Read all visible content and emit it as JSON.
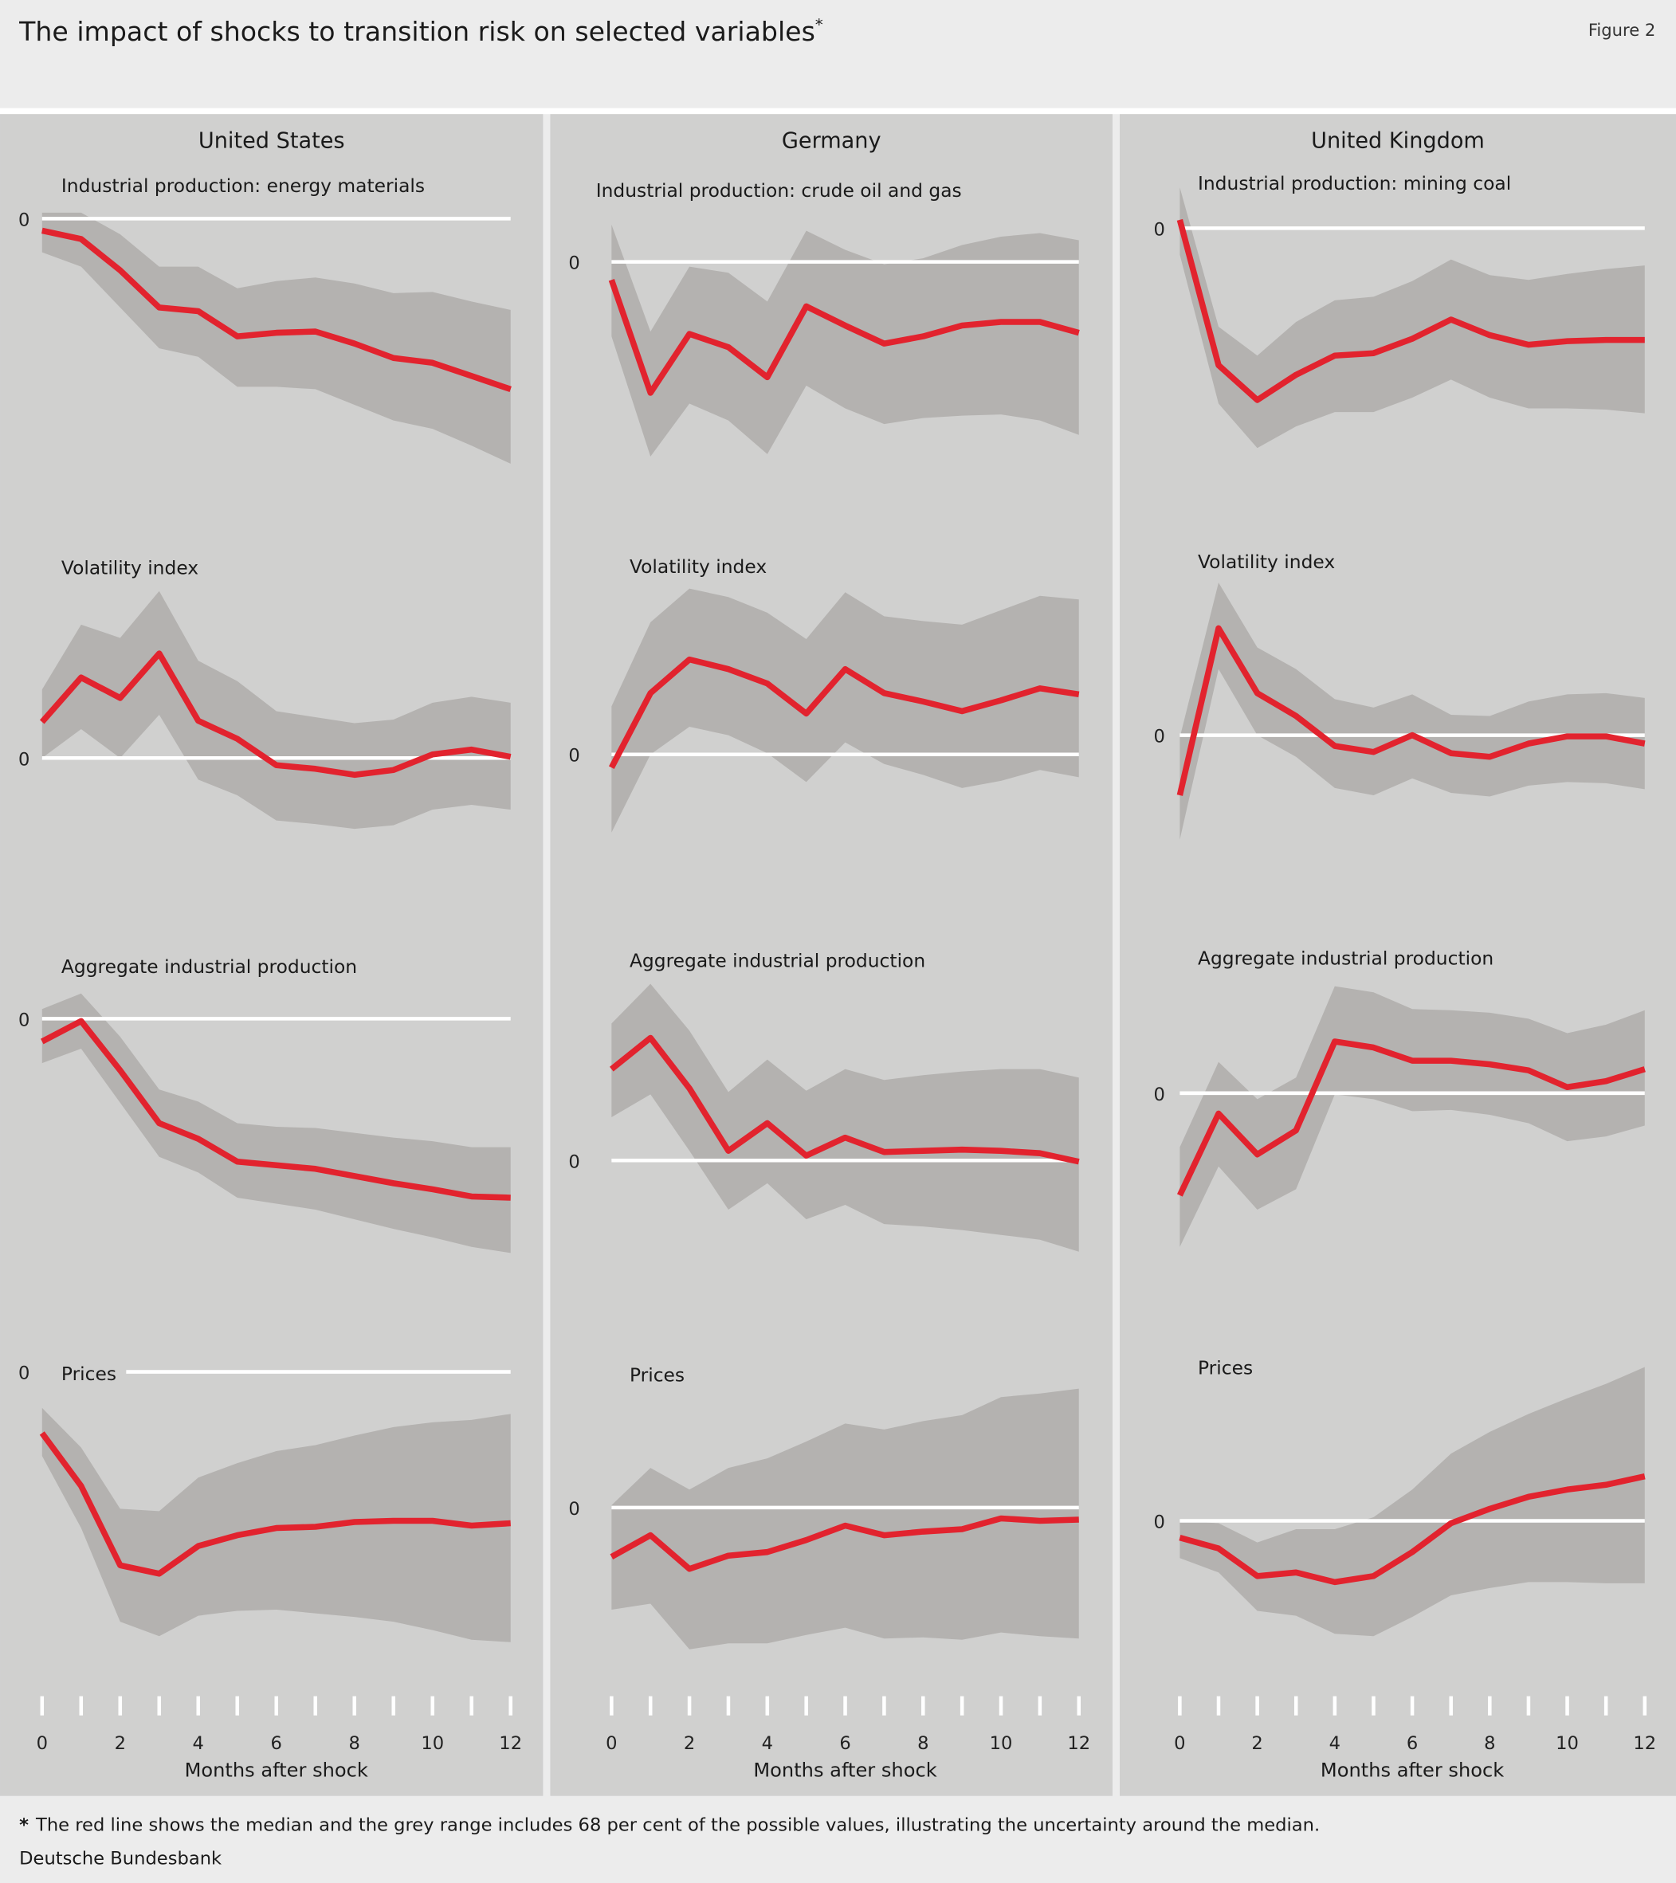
{
  "title": "The impact of shocks to transition risk on selected variables",
  "title_marker": "*",
  "figure_label": "Figure 2",
  "footnote_marker": "*",
  "footnote": "The red line shows the median and the grey range includes 68 per cent of the possible values, illustrating the uncertainty around the median.",
  "source": "Deutsche Bundesbank",
  "colors": {
    "median": "#e2232e",
    "band": "#b4b2b0",
    "panel_bg": "#d0d0cf",
    "page_bg": "#ececec",
    "zero_line": "#ffffff"
  },
  "chart_data": [
    {
      "country": "United States",
      "xlabel": "Months after shock",
      "x": [
        0,
        1,
        2,
        3,
        4,
        5,
        6,
        7,
        8,
        9,
        10,
        11,
        12
      ],
      "x_tick_labels": [
        "0",
        "2",
        "4",
        "6",
        "8",
        "10",
        "12"
      ],
      "zero_label": "0",
      "panels": [
        {
          "type": "area",
          "title": "Industrial production: energy materials",
          "median": [
            -1.0,
            -1.7,
            -4.3,
            -7.4,
            -7.7,
            -9.8,
            -9.5,
            -9.4,
            -10.4,
            -11.6,
            -12.0,
            -13.1,
            -14.2
          ],
          "upper": [
            0.5,
            0.5,
            -1.3,
            -4.0,
            -4.0,
            -5.8,
            -5.2,
            -4.9,
            -5.4,
            -6.2,
            -6.1,
            -6.9,
            -7.6
          ],
          "lower": [
            -2.8,
            -4.0,
            -7.4,
            -10.8,
            -11.5,
            -14.0,
            -14.0,
            -14.2,
            -15.5,
            -16.8,
            -17.5,
            -18.9,
            -20.4
          ]
        },
        {
          "type": "area",
          "title": "Volatility index",
          "median": [
            3.0,
            6.7,
            5.0,
            8.7,
            3.1,
            1.6,
            -0.6,
            -0.9,
            -1.4,
            -1.0,
            0.3,
            0.7,
            0.1
          ],
          "upper": [
            5.7,
            11.1,
            10.0,
            13.9,
            8.1,
            6.4,
            3.9,
            3.4,
            2.9,
            3.2,
            4.6,
            5.1,
            4.6
          ],
          "lower": [
            0,
            2.4,
            0,
            3.6,
            -1.8,
            -3.1,
            -5.2,
            -5.5,
            -5.9,
            -5.6,
            -4.3,
            -3.9,
            -4.3
          ]
        },
        {
          "type": "area",
          "title": "Aggregate industrial production",
          "median": [
            -1.9,
            -0.2,
            -4.3,
            -8.7,
            -10.0,
            -11.9,
            -12.2,
            -12.5,
            -13.1,
            -13.7,
            -14.2,
            -14.8,
            -14.9
          ],
          "upper": [
            0.8,
            2.1,
            -1.5,
            -5.9,
            -6.9,
            -8.7,
            -9.0,
            -9.1,
            -9.5,
            -9.9,
            -10.2,
            -10.7,
            -10.7
          ],
          "lower": [
            -3.7,
            -2.5,
            -7.0,
            -11.5,
            -12.8,
            -14.9,
            -15.4,
            -15.9,
            -16.7,
            -17.5,
            -18.2,
            -19.0,
            -19.5
          ]
        },
        {
          "type": "area",
          "title": "Prices",
          "median": [
            -5.1,
            -9.5,
            -16.1,
            -16.8,
            -14.5,
            -13.6,
            -13.0,
            -12.9,
            -12.5,
            -12.4,
            -12.4,
            -12.8,
            -12.6
          ],
          "upper": [
            -3.0,
            -6.3,
            -11.4,
            -11.6,
            -8.8,
            -7.6,
            -6.6,
            -6.1,
            -5.3,
            -4.6,
            -4.2,
            -4.0,
            -3.5
          ],
          "lower": [
            -7.0,
            -13.0,
            -20.8,
            -22.0,
            -20.3,
            -19.9,
            -19.8,
            -20.1,
            -20.4,
            -20.8,
            -21.5,
            -22.3,
            -22.5
          ]
        }
      ]
    },
    {
      "country": "Germany",
      "xlabel": "Months after shock",
      "x": [
        0,
        1,
        2,
        3,
        4,
        5,
        6,
        7,
        8,
        9,
        10,
        11,
        12
      ],
      "x_tick_labels": [
        "0",
        "2",
        "4",
        "6",
        "8",
        "10",
        "12"
      ],
      "zero_label": "0",
      "panels": [
        {
          "type": "area",
          "title": "Industrial production: crude oil and gas",
          "median": [
            -1.5,
            -10.9,
            -6.0,
            -7.1,
            -9.6,
            -3.7,
            -5.3,
            -6.8,
            -6.2,
            -5.3,
            -5.0,
            -5.0,
            -5.9
          ],
          "upper": [
            3.1,
            -5.8,
            -0.4,
            -0.9,
            -3.3,
            2.6,
            1.0,
            -0.2,
            0.3,
            1.4,
            2.1,
            2.4,
            1.8
          ],
          "lower": [
            -6.2,
            -16.2,
            -11.8,
            -13.2,
            -16.0,
            -10.3,
            -12.2,
            -13.5,
            -13.0,
            -12.8,
            -12.7,
            -13.2,
            -14.4
          ]
        },
        {
          "type": "area",
          "title": "Volatility index",
          "median": [
            -1.1,
            5.1,
            7.9,
            7.1,
            5.9,
            3.4,
            7.1,
            5.1,
            4.4,
            3.6,
            4.5,
            5.5,
            5.0
          ],
          "upper": [
            4.0,
            11.0,
            13.8,
            13.1,
            11.8,
            9.6,
            13.5,
            11.5,
            11.1,
            10.8,
            12.0,
            13.2,
            12.9
          ],
          "lower": [
            -6.5,
            0,
            2.3,
            1.6,
            0.1,
            -2.3,
            1.0,
            -0.8,
            -1.7,
            -2.8,
            -2.2,
            -1.3,
            -1.9
          ]
        },
        {
          "type": "area",
          "title": "Aggregate industrial production",
          "median": [
            7.6,
            10.2,
            6.0,
            0.8,
            3.1,
            0.4,
            1.9,
            0.7,
            0.8,
            0.9,
            0.8,
            0.6,
            -0.1
          ],
          "upper": [
            11.4,
            14.7,
            10.8,
            5.7,
            8.4,
            5.8,
            7.6,
            6.7,
            7.1,
            7.4,
            7.6,
            7.6,
            6.9
          ],
          "lower": [
            3.6,
            5.5,
            0.8,
            -4.1,
            -1.9,
            -4.9,
            -3.7,
            -5.3,
            -5.5,
            -5.8,
            -6.2,
            -6.6,
            -7.6
          ]
        },
        {
          "type": "area",
          "title": "Prices",
          "median": [
            -4.1,
            -2.3,
            -5.1,
            -4.0,
            -3.7,
            -2.7,
            -1.5,
            -2.3,
            -2.0,
            -1.8,
            -0.9,
            -1.1,
            -1.0
          ],
          "upper": [
            0.2,
            3.3,
            1.5,
            3.3,
            4.1,
            5.5,
            7.0,
            6.5,
            7.2,
            7.7,
            9.2,
            9.5,
            9.9
          ],
          "lower": [
            -8.5,
            -8.0,
            -11.8,
            -11.3,
            -11.3,
            -10.6,
            -10.0,
            -10.9,
            -10.8,
            -11.0,
            -10.4,
            -10.7,
            -10.9
          ]
        }
      ]
    },
    {
      "country": "United Kingdom",
      "xlabel": "Months after shock",
      "x": [
        0,
        1,
        2,
        3,
        4,
        5,
        6,
        7,
        8,
        9,
        10,
        11,
        12
      ],
      "x_tick_labels": [
        "0",
        "2",
        "4",
        "6",
        "8",
        "10",
        "12"
      ],
      "zero_label": "0",
      "panels": [
        {
          "type": "area",
          "title": "Industrial production: mining coal",
          "median": [
            0.7,
            -11.4,
            -14.3,
            -12.2,
            -10.6,
            -10.4,
            -9.2,
            -7.6,
            -8.9,
            -9.7,
            -9.4,
            -9.3,
            -9.3
          ],
          "upper": [
            3.4,
            -8.2,
            -10.6,
            -7.8,
            -6.0,
            -5.7,
            -4.4,
            -2.6,
            -3.9,
            -4.3,
            -3.8,
            -3.4,
            -3.1
          ],
          "lower": [
            -2.2,
            -14.6,
            -18.3,
            -16.5,
            -15.3,
            -15.3,
            -14.1,
            -12.6,
            -14.1,
            -15.0,
            -15.0,
            -15.1,
            -15.4
          ]
        },
        {
          "type": "area",
          "title": "Volatility index",
          "median": [
            -5.0,
            8.9,
            3.5,
            1.6,
            -0.9,
            -1.4,
            0,
            -1.5,
            -1.8,
            -0.7,
            -0.1,
            -0.1,
            -0.7
          ],
          "upper": [
            -0.2,
            12.7,
            7.3,
            5.5,
            3.0,
            2.3,
            3.4,
            1.7,
            1.6,
            2.8,
            3.4,
            3.5,
            3.1
          ],
          "lower": [
            -8.7,
            5.5,
            0,
            -1.8,
            -4.4,
            -5.0,
            -3.6,
            -4.8,
            -5.1,
            -4.2,
            -3.9,
            -4.0,
            -4.5
          ]
        },
        {
          "type": "area",
          "title": "Aggregate industrial production",
          "median": [
            -8.5,
            -1.7,
            -5.1,
            -3.1,
            4.3,
            3.8,
            2.7,
            2.7,
            2.4,
            1.9,
            0.5,
            1.0,
            2.0
          ],
          "upper": [
            -4.5,
            2.6,
            -0.5,
            1.3,
            8.9,
            8.4,
            7.0,
            6.9,
            6.7,
            6.2,
            5.0,
            5.7,
            6.9
          ],
          "lower": [
            -12.8,
            -6.1,
            -9.7,
            -8.0,
            -0.1,
            -0.5,
            -1.5,
            -1.4,
            -1.8,
            -2.5,
            -4.0,
            -3.6,
            -2.7
          ]
        },
        {
          "type": "area",
          "title": "Prices",
          "median": [
            -1.4,
            -2.3,
            -4.6,
            -4.3,
            -5.1,
            -4.6,
            -2.6,
            -0.2,
            1.0,
            2.0,
            2.6,
            3.0,
            3.7
          ],
          "upper": [
            0,
            -0.2,
            -1.8,
            -0.7,
            -0.7,
            0.3,
            2.6,
            5.6,
            7.4,
            8.9,
            10.2,
            11.4,
            12.8
          ],
          "lower": [
            -3.1,
            -4.3,
            -7.5,
            -7.9,
            -9.4,
            -9.6,
            -8.0,
            -6.2,
            -5.6,
            -5.1,
            -5.1,
            -5.2,
            -5.2
          ]
        }
      ]
    }
  ]
}
